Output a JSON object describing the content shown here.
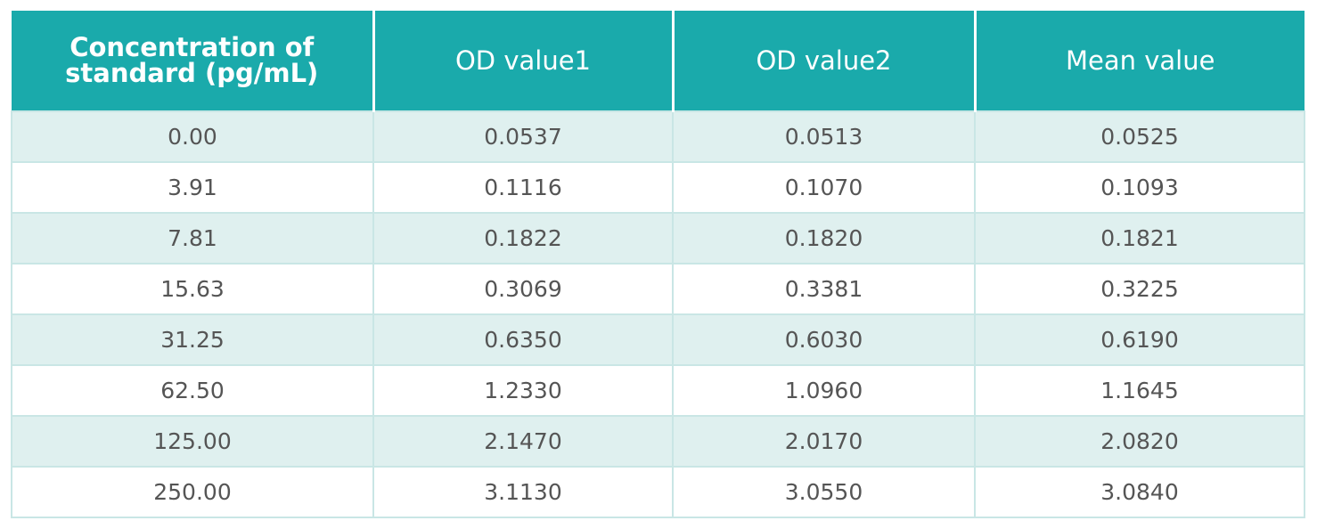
{
  "table": {
    "headers": [
      "Concentration of standard (pg/mL)",
      "OD value1",
      "OD value2",
      "Mean value"
    ],
    "rows": [
      [
        "0.00",
        "0.0537",
        "0.0513",
        "0.0525"
      ],
      [
        "3.91",
        "0.1116",
        "0.1070",
        "0.1093"
      ],
      [
        "7.81",
        "0.1822",
        "0.1820",
        "0.1821"
      ],
      [
        "15.63",
        "0.3069",
        "0.3381",
        "0.3225"
      ],
      [
        "31.25",
        "0.6350",
        "0.6030",
        "0.6190"
      ],
      [
        "62.50",
        "1.2330",
        "1.0960",
        "1.1645"
      ],
      [
        "125.00",
        "2.1470",
        "2.0170",
        "2.0820"
      ],
      [
        "250.00",
        "3.1130",
        "3.0550",
        "3.0840"
      ]
    ]
  },
  "colors": {
    "header_bg": "#1aaaab",
    "header_text": "#ffffff",
    "row_alt_bg": "#dff0ef",
    "row_bg": "#ffffff",
    "border": "#c9e6e5",
    "cell_text": "#555555"
  }
}
